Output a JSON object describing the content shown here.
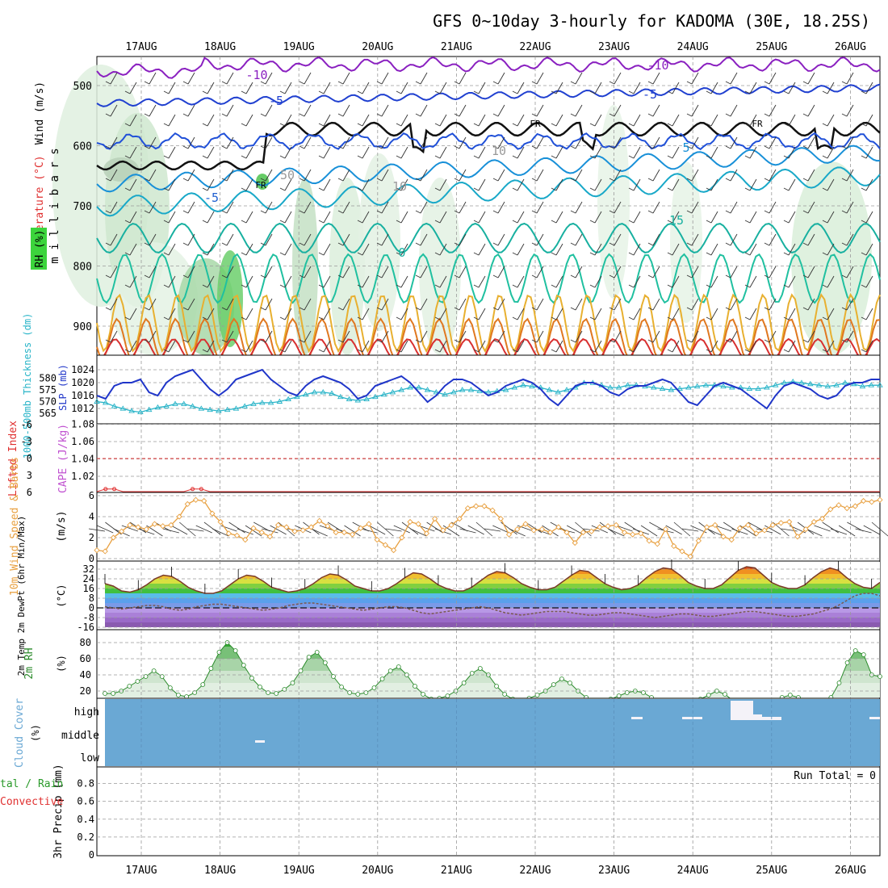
{
  "title": "GFS 0~10day 3-hourly for KADOMA (30E, 18.25S)",
  "colors": {
    "slp": "#1f35c9",
    "thickness": "#28b4c8",
    "wind_speed": "#e8a040",
    "rh": "#2a8a2a",
    "cloud": "#6aa8d4",
    "temp_line": "#7a3a28",
    "dewpoint": "#7a5a50",
    "lifted_index": "#e03030",
    "cape": "#c050d0",
    "grid": "#9a9a9a"
  },
  "chart_data": [
    {
      "type": "heatmap",
      "panel": "upper-air",
      "x": [
        "17AUG",
        "18AUG",
        "19AUG",
        "20AUG",
        "21AUG",
        "22AUG",
        "23AUG",
        "24AUG",
        "25AUG",
        "26AUG"
      ],
      "y_ticks": [
        500,
        600,
        700,
        800,
        900
      ],
      "ylabel_text": "m i l l i b a r s",
      "left_labels": [
        "Wind (m/s)",
        "Temperature (°C)",
        "RH (%)"
      ],
      "contour_labels": [
        "-10",
        "-10",
        "-5",
        "-5",
        "FR",
        "FR",
        "FR",
        "-5",
        "5",
        "0",
        "15",
        "50",
        "10",
        "10"
      ],
      "isotherm_temperature_c": [
        -10,
        -5,
        0,
        5,
        10,
        15
      ]
    },
    {
      "type": "line",
      "panel": "slp-thickness",
      "y_left_ticks": [
        565,
        570,
        575,
        580
      ],
      "y_right_ticks": [
        1012,
        1016,
        1020,
        1024
      ],
      "left_label": "1000-500mb Thickness (dm)",
      "right_label": "SLP (mb)",
      "series": [
        {
          "name": "SLP (mb)",
          "values": [
            1016,
            1015,
            1019,
            1020,
            1020,
            1021,
            1017,
            1016,
            1020,
            1022,
            1023,
            1024,
            1021,
            1018,
            1016,
            1018,
            1021,
            1022,
            1023,
            1024,
            1021,
            1019,
            1017,
            1016,
            1019,
            1021,
            1022,
            1021,
            1020,
            1018,
            1015,
            1016,
            1019,
            1020,
            1021,
            1022,
            1020,
            1017,
            1014,
            1016,
            1019,
            1021,
            1021,
            1020,
            1018,
            1016,
            1017,
            1019,
            1020,
            1021,
            1020,
            1018,
            1015,
            1013,
            1016,
            1019,
            1020,
            1020,
            1019,
            1017,
            1016,
            1018,
            1019,
            1019,
            1020,
            1021,
            1020,
            1017,
            1014,
            1013,
            1016,
            1019,
            1020,
            1019,
            1018,
            1016,
            1014,
            1012,
            1016,
            1019,
            1020,
            1019,
            1018,
            1016,
            1015,
            1016,
            1019,
            1020,
            1020,
            1021,
            1021
          ]
        },
        {
          "name": "1000-500mb Thickness (dm)",
          "values": [
            570,
            569.5,
            568,
            567,
            566,
            565.5,
            566.5,
            567.5,
            568,
            569,
            569,
            568,
            567,
            566.5,
            566,
            566.5,
            567,
            568,
            569,
            569.5,
            569.5,
            570,
            571,
            572,
            573,
            574,
            574,
            573.5,
            572,
            571,
            570.5,
            571,
            572,
            573,
            574,
            575,
            576,
            576,
            575,
            574,
            573,
            574,
            575,
            575,
            574.5,
            574,
            574.5,
            575,
            576,
            577,
            576.5,
            576,
            575,
            574,
            575,
            576,
            578,
            578,
            577,
            576,
            576,
            577,
            577,
            576.5,
            576,
            575.5,
            575,
            575.5,
            576,
            576.5,
            577,
            577,
            576.5,
            576,
            576,
            575.5,
            575.5,
            576,
            577,
            578,
            578.5,
            578,
            577.5,
            577,
            576.5,
            577,
            578,
            577.5,
            576.5,
            577,
            577
          ]
        }
      ]
    },
    {
      "type": "line",
      "panel": "lifted-index-cape",
      "y_left_ticks": [
        6,
        3,
        0,
        -3,
        -6
      ],
      "y_right_ticks": [
        1.02,
        1.04,
        1.06,
        1.08
      ],
      "left_label": "Lifted Index",
      "right_label": "CAPE (J/kg)",
      "series": [
        {
          "name": "Lifted Index",
          "values": [
            6,
            5.4,
            5.4,
            6,
            6,
            6,
            6,
            6,
            6,
            6,
            6,
            5.4,
            5.4,
            6,
            6,
            6,
            6,
            6,
            6,
            6,
            6,
            6,
            6,
            6,
            6,
            6,
            6,
            6,
            6,
            6,
            6,
            6,
            6,
            6,
            6,
            6,
            6,
            6,
            6,
            6,
            6,
            6,
            6,
            6,
            6,
            6,
            6,
            6,
            6,
            6,
            6,
            6,
            6,
            6,
            6,
            6,
            6,
            6,
            6,
            6,
            6,
            6,
            6,
            6,
            6,
            6,
            6,
            6,
            6,
            6,
            6,
            6,
            6,
            6,
            6,
            6,
            6,
            6,
            6,
            6,
            6,
            6,
            6,
            6,
            6,
            6,
            6,
            6,
            6,
            6,
            6
          ]
        }
      ]
    },
    {
      "type": "line",
      "panel": "10m-wind",
      "y_ticks": [
        0,
        2,
        4,
        6
      ],
      "left_label": "10m Wind Speed & Barbs",
      "unit": "(m/s)",
      "series": [
        {
          "name": "Speed",
          "values": [
            0.8,
            0.7,
            2,
            2.6,
            3.2,
            3,
            2.8,
            3.3,
            3.1,
            3.2,
            4,
            5.2,
            5.6,
            5.5,
            4.3,
            3.5,
            2.4,
            2.2,
            1.8,
            2.9,
            2.5,
            2.1,
            3.2,
            3,
            2.6,
            2.7,
            3,
            3.6,
            3.1,
            2.5,
            2.5,
            2.3,
            2.9,
            3.3,
            1.8,
            1.3,
            0.8,
            2,
            3.5,
            3.3,
            2.4,
            3.8,
            2.7,
            3.2,
            3.8,
            4.8,
            5,
            5,
            4.6,
            3.8,
            2.3,
            2.8,
            3.3,
            2.7,
            2.8,
            2.5,
            3,
            2.5,
            1.5,
            2.5,
            2.6,
            3,
            3.1,
            3.2,
            2.5,
            2.3,
            2.4,
            1.7,
            1.4,
            2.8,
            1.2,
            0.7,
            0.2,
            1.7,
            3,
            3.2,
            2.1,
            1.8,
            2.9,
            3.2,
            2.4,
            2.7,
            3.2,
            3.4,
            3.5,
            2.1,
            2.8,
            3.5,
            3.8,
            4.7,
            5.1,
            4.8,
            5,
            5.5,
            5.4,
            5.6
          ]
        }
      ]
    },
    {
      "type": "area",
      "panel": "2m-temp",
      "y_ticks": [
        -16,
        -8,
        0,
        8,
        16,
        24,
        32
      ],
      "left_label": "2m Temp 2m DewPt (6hr Min/Max)",
      "unit": "(°C)",
      "series": [
        {
          "name": "2m Temp",
          "values": [
            20,
            18,
            14,
            13,
            15,
            19,
            24,
            27,
            26,
            22,
            17,
            14,
            12,
            12,
            14,
            19,
            24,
            27,
            26,
            22,
            17,
            15,
            13,
            14,
            16,
            20,
            25,
            28,
            27,
            23,
            18,
            16,
            14,
            14,
            16,
            20,
            25,
            29,
            28,
            24,
            19,
            16,
            14,
            14,
            17,
            22,
            27,
            30,
            29,
            25,
            20,
            17,
            15,
            15,
            17,
            22,
            27,
            31,
            30,
            25,
            20,
            17,
            15,
            16,
            19,
            25,
            30,
            33,
            32,
            27,
            21,
            18,
            16,
            16,
            19,
            25,
            31,
            34,
            33,
            27,
            21,
            18,
            16,
            16,
            19,
            25,
            30,
            33,
            31,
            25,
            20,
            17,
            16,
            21
          ]
        },
        {
          "name": "2m DewPt",
          "values": [
            1,
            0,
            -1,
            0,
            1,
            2,
            2,
            1,
            -1,
            -2,
            -1,
            1,
            2,
            3,
            3,
            2,
            1,
            0,
            -1,
            -2,
            -1,
            0,
            2,
            3,
            4,
            4,
            3,
            2,
            1,
            0,
            -1,
            -2,
            -1,
            0,
            1,
            1,
            0,
            -2,
            -4,
            -5,
            -4,
            -3,
            -2,
            -1,
            0,
            1,
            0,
            -2,
            -4,
            -5,
            -6,
            -5,
            -4,
            -3,
            -3,
            -3,
            -4,
            -5,
            -6,
            -6,
            -5,
            -4,
            -4,
            -5,
            -6,
            -7,
            -8,
            -7,
            -6,
            -5,
            -5,
            -6,
            -7,
            -7,
            -6,
            -5,
            -4,
            -3,
            -3,
            -4,
            -5,
            -6,
            -7,
            -7,
            -6,
            -5,
            -3,
            -1,
            2,
            6,
            10,
            12,
            12,
            10
          ]
        }
      ]
    },
    {
      "type": "area",
      "panel": "2m-rh",
      "y_ticks": [
        20,
        40,
        60,
        80
      ],
      "left_label": "2m RH",
      "unit": "(%)",
      "series": [
        {
          "name": "2m RH",
          "values": [
            17,
            17,
            20,
            26,
            32,
            38,
            45,
            38,
            24,
            15,
            13,
            18,
            28,
            48,
            68,
            80,
            70,
            52,
            36,
            25,
            18,
            17,
            22,
            30,
            45,
            62,
            68,
            55,
            38,
            25,
            18,
            16,
            18,
            24,
            35,
            45,
            50,
            40,
            26,
            16,
            10,
            11,
            14,
            20,
            30,
            42,
            48,
            40,
            26,
            16,
            10,
            8,
            11,
            15,
            20,
            28,
            35,
            30,
            20,
            12,
            8,
            8,
            10,
            14,
            18,
            20,
            18,
            12,
            6,
            4,
            5,
            6,
            8,
            10,
            15,
            20,
            16,
            8,
            4,
            3,
            4,
            6,
            8,
            12,
            15,
            12,
            8,
            5,
            6,
            12,
            30,
            55,
            70,
            65,
            40,
            38
          ]
        }
      ]
    },
    {
      "type": "area",
      "panel": "cloud-cover",
      "y_ticks": [
        "high",
        "middle",
        "low"
      ],
      "left_label": "Cloud Cover",
      "unit": "(%)"
    },
    {
      "type": "bar",
      "panel": "precip",
      "y_ticks": [
        0,
        0.2,
        0.4,
        0.6,
        0.8
      ],
      "left_label_1": "3hr Precip (mm)",
      "left_label_2": "tal / Rain",
      "left_label_3": "Convective",
      "annotation": "Run Total = 0"
    }
  ]
}
